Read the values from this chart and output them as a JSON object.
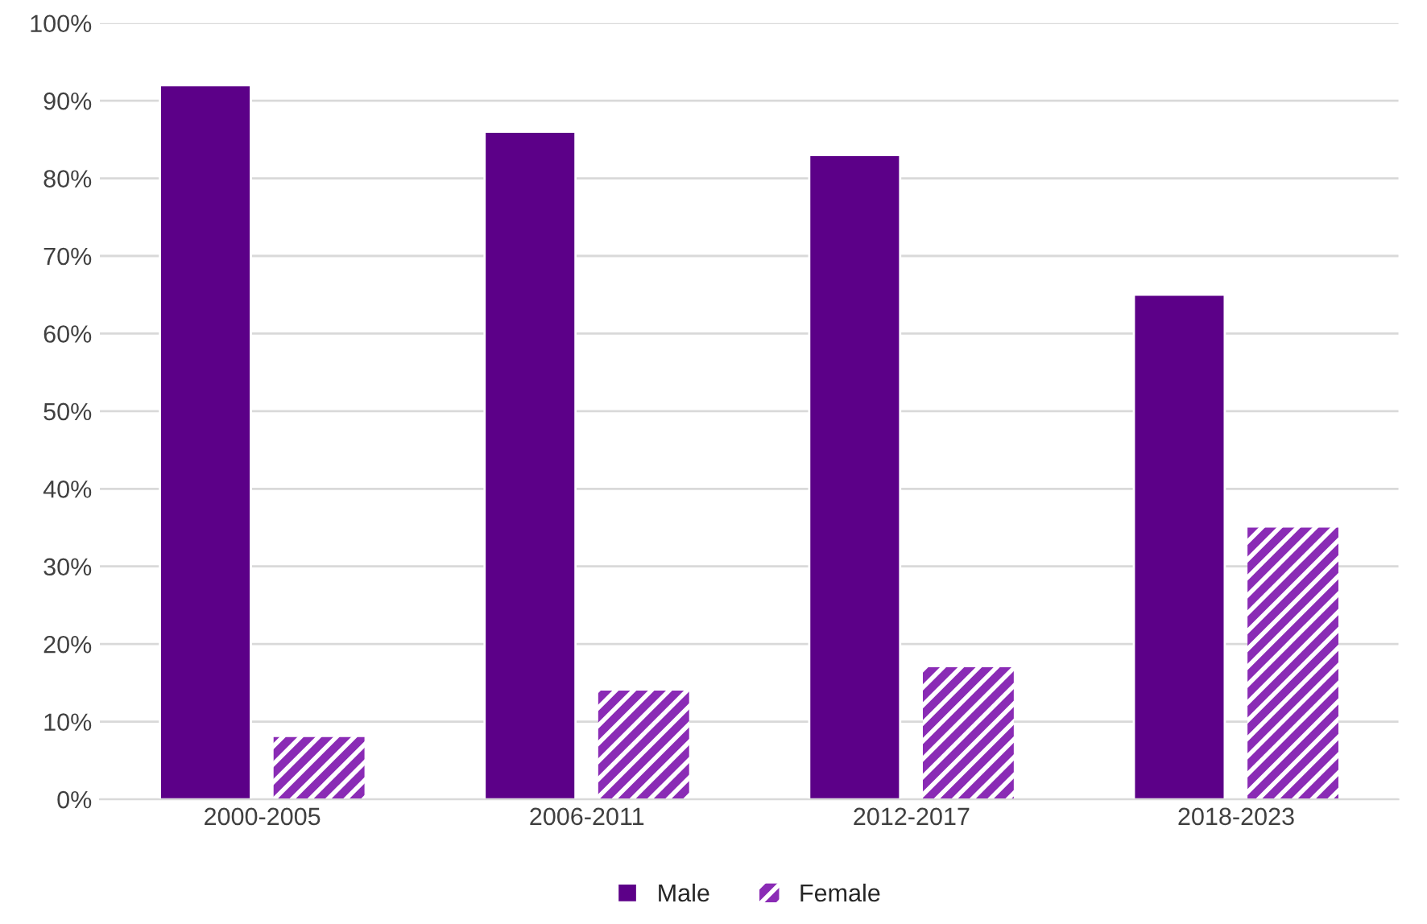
{
  "chart_data": {
    "type": "bar",
    "categories": [
      "2000-2005",
      "2006-2011",
      "2012-2017",
      "2018-2023"
    ],
    "series": [
      {
        "name": "Male",
        "color": "#5c0088",
        "values": [
          92,
          86,
          83,
          65
        ]
      },
      {
        "name": "Female",
        "color": "#8a2bb5",
        "values": [
          8,
          14,
          17,
          35
        ]
      }
    ],
    "ylim": [
      0,
      100
    ],
    "yticks": [
      {
        "value": 0,
        "label": "0%"
      },
      {
        "value": 10,
        "label": "10%"
      },
      {
        "value": 20,
        "label": "20%"
      },
      {
        "value": 30,
        "label": "30%"
      },
      {
        "value": 40,
        "label": "40%"
      },
      {
        "value": 50,
        "label": "50%"
      },
      {
        "value": 60,
        "label": "60%"
      },
      {
        "value": 70,
        "label": "70%"
      },
      {
        "value": 80,
        "label": "80%"
      },
      {
        "value": 90,
        "label": "90%"
      },
      {
        "value": 100,
        "label": "100%"
      }
    ],
    "grid": "y",
    "legend": "bottom"
  }
}
